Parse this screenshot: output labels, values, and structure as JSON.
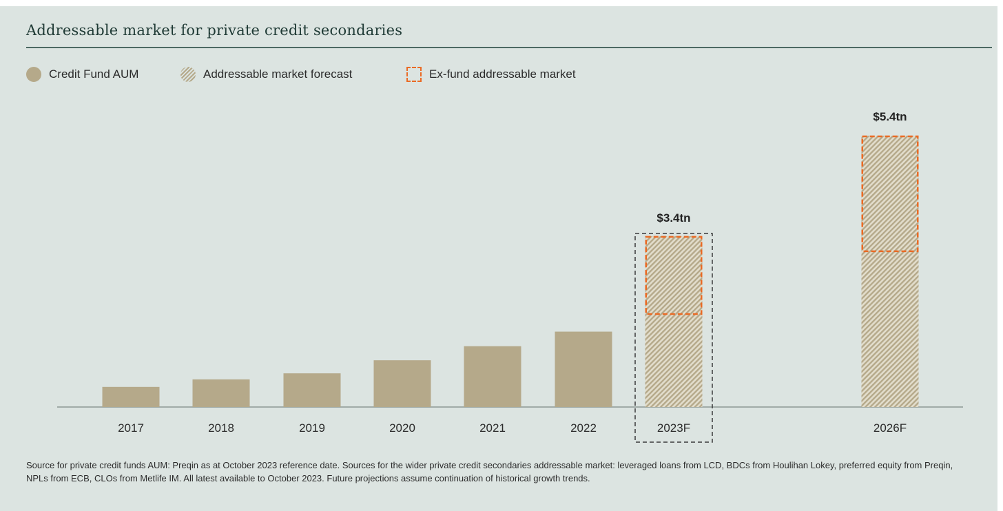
{
  "chart_data": {
    "type": "bar",
    "title": "Addressable market for private credit secondaries",
    "categories": [
      "2017",
      "2018",
      "2019",
      "2020",
      "2021",
      "2022",
      "2023F",
      "2026F"
    ],
    "series": [
      {
        "name": "Credit Fund AUM",
        "values": [
          0.4,
          0.55,
          0.67,
          0.93,
          1.21,
          1.5,
          null,
          null
        ]
      },
      {
        "name": "Addressable market forecast",
        "values": [
          null,
          null,
          null,
          null,
          null,
          null,
          3.4,
          5.4
        ]
      },
      {
        "name": "Ex-fund addressable market",
        "values": [
          null,
          null,
          null,
          null,
          null,
          null,
          1.85,
          3.1
        ]
      }
    ],
    "data_labels": {
      "2023F": "$3.4tn",
      "2026F": "$5.4tn"
    },
    "ylim": [
      0,
      6
    ],
    "unit": "tn",
    "legend_position": "top-left",
    "grid": false,
    "colors": {
      "Credit Fund AUM": "#b5a98a",
      "Addressable market forecast": "#b5a98a",
      "Ex-fund addressable market": "#ea6a24"
    }
  },
  "footnote": "Source for private credit funds AUM: Preqin as at October 2023 reference date. Sources for the wider private credit secondaries addressable market: leveraged loans from LCD, BDCs from Houlihan Lokey, preferred equity from Preqin, NPLs from ECB, CLOs from Metlife IM. All latest available to October 2023. Future projections assume continuation of historical growth trends."
}
